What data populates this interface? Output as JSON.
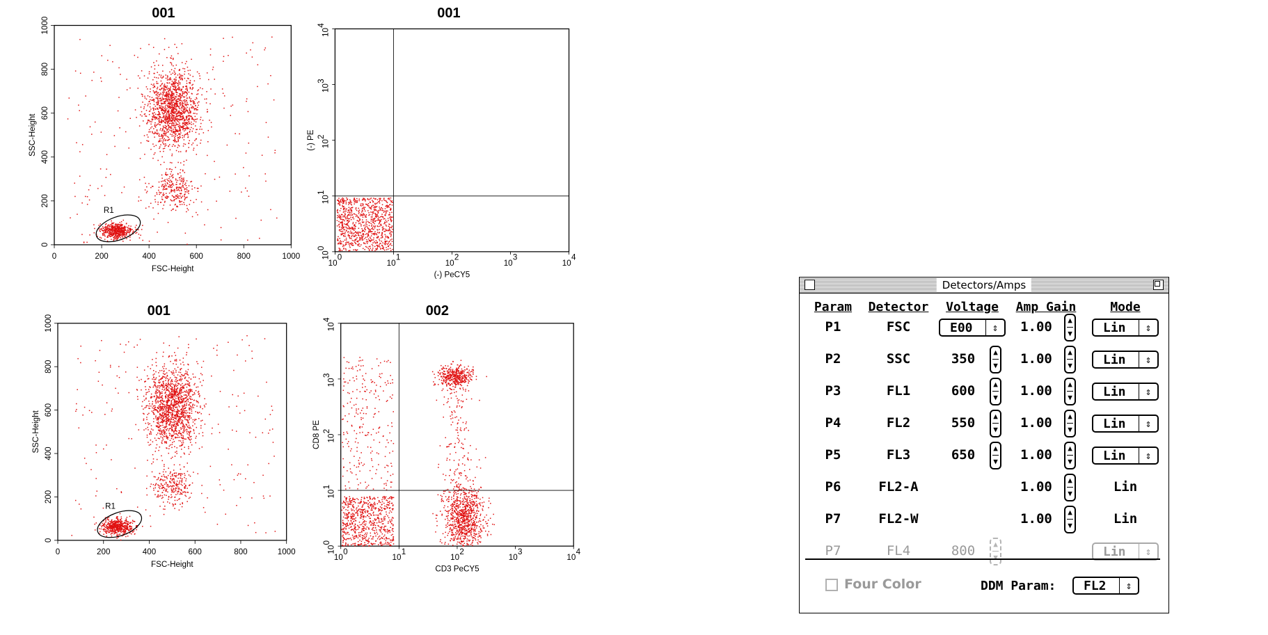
{
  "plots": [
    {
      "title": "001",
      "type": "scatter-linear",
      "x_ticks": [
        "0",
        "200",
        "400",
        "600",
        "800",
        "1000"
      ],
      "y_ticks": [
        "0",
        "200",
        "400",
        "600",
        "800",
        "1000"
      ],
      "xlabel": "FSC-Height",
      "ylabel": "SSC-Height",
      "gate_label": "R1",
      "dot_color": "#e01010"
    },
    {
      "title": "001",
      "type": "scatter-log",
      "xlabel": "(-) PeCY5",
      "ylabel": "(-) PE",
      "dot_color": "#e01010"
    },
    {
      "title": "001",
      "type": "scatter-linear",
      "x_ticks": [
        "0",
        "200",
        "400",
        "600",
        "800",
        "1000"
      ],
      "y_ticks": [
        "0",
        "200",
        "400",
        "600",
        "800",
        "1000"
      ],
      "xlabel": "FSC-Height",
      "ylabel": "SSC-Height",
      "gate_label": "R1",
      "dot_color": "#e01010"
    },
    {
      "title": "002",
      "type": "scatter-log",
      "xlabel": "CD3 PeCY5",
      "ylabel": "CD8 PE",
      "dot_color": "#e01010"
    }
  ],
  "log_ticks": {
    "base": "10",
    "exps": [
      "0",
      "1",
      "2",
      "3",
      "4"
    ]
  },
  "window": {
    "title": "Detectors/Amps",
    "headers": {
      "param": "Param",
      "detector": "Detector",
      "voltage": "Voltage",
      "amp_gain": "Amp Gain",
      "mode": "Mode"
    },
    "rows": [
      {
        "param": "P1",
        "detector": "FSC",
        "voltage": "E00",
        "gain": "1.00",
        "mode": "Lin"
      },
      {
        "param": "P2",
        "detector": "SSC",
        "voltage": "350",
        "gain": "1.00",
        "mode": "Lin"
      },
      {
        "param": "P3",
        "detector": "FL1",
        "voltage": "600",
        "gain": "1.00",
        "mode": "Lin"
      },
      {
        "param": "P4",
        "detector": "FL2",
        "voltage": "550",
        "gain": "1.00",
        "mode": "Lin"
      },
      {
        "param": "P5",
        "detector": "FL3",
        "voltage": "650",
        "gain": "1.00",
        "mode": "Lin"
      },
      {
        "param": "P6",
        "detector": "FL2-A",
        "voltage": "",
        "gain": "1.00",
        "mode": "Lin"
      },
      {
        "param": "P7",
        "detector": "FL2-W",
        "voltage": "",
        "gain": "1.00",
        "mode": "Lin"
      },
      {
        "param": "P7",
        "detector": "FL4",
        "voltage": "800",
        "gain": "",
        "mode": "Lin"
      }
    ],
    "four_color_label": "Four Color",
    "ddm_label": "DDM Param:",
    "ddm_value": "FL2"
  }
}
